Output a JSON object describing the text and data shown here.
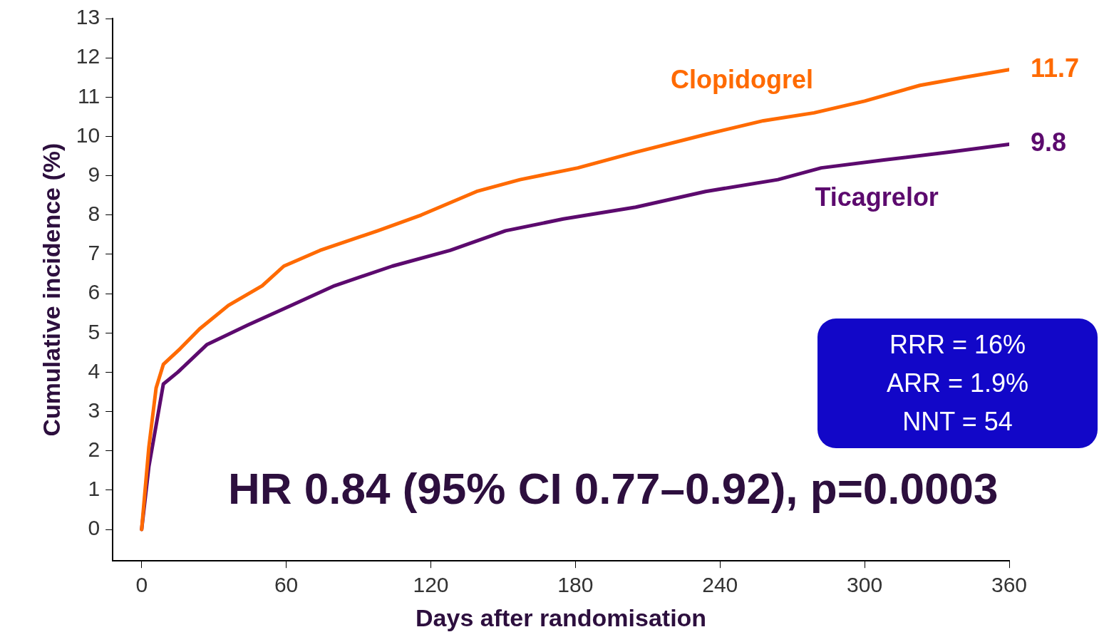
{
  "chart_data": {
    "type": "line",
    "xlabel": "Days after randomisation",
    "ylabel": "Cumulative incidence (%)",
    "xlim": [
      -12,
      360
    ],
    "xticks": [
      0,
      60,
      120,
      180,
      240,
      300,
      360
    ],
    "ylim": [
      -0.8,
      13
    ],
    "yticks": [
      0,
      1,
      2,
      3,
      4,
      5,
      6,
      7,
      8,
      9,
      10,
      11,
      12,
      13
    ],
    "grid": false,
    "legend": false,
    "marker": "none",
    "line_style": "solid",
    "series": [
      {
        "name": "Clopidogrel",
        "color": "#ff6a00",
        "x": [
          0,
          3,
          6,
          9,
          16,
          24,
          36,
          50,
          59,
          74,
          98,
          116,
          139,
          157,
          181,
          205,
          234,
          258,
          279,
          300,
          323,
          341,
          360
        ],
        "values": [
          0,
          2.1,
          3.6,
          4.2,
          4.6,
          5.1,
          5.7,
          6.2,
          6.7,
          7.1,
          7.6,
          8.0,
          8.6,
          8.9,
          9.2,
          9.6,
          10.05,
          10.4,
          10.6,
          10.9,
          11.3,
          11.5,
          11.7
        ]
      },
      {
        "name": "Ticagrelor",
        "color": "#5c0a6e",
        "x": [
          0,
          3,
          9,
          15,
          27,
          44,
          62,
          80,
          104,
          128,
          151,
          175,
          205,
          234,
          264,
          282,
          308,
          335,
          360
        ],
        "values": [
          0,
          1.6,
          3.7,
          4.0,
          4.7,
          5.2,
          5.7,
          6.2,
          6.7,
          7.1,
          7.6,
          7.9,
          8.2,
          8.6,
          8.9,
          9.2,
          9.4,
          9.6,
          9.8
        ]
      }
    ],
    "annotations": [
      {
        "text": "11.7",
        "x": 360,
        "y": 11.7
      },
      {
        "text": "9.8",
        "x": 360,
        "y": 9.8
      },
      "RRR = 16%",
      "ARR = 1.9%",
      "NNT = 54",
      "HR 0.84 (95% CI 0.77–0.92), p=0.0003"
    ]
  }
}
